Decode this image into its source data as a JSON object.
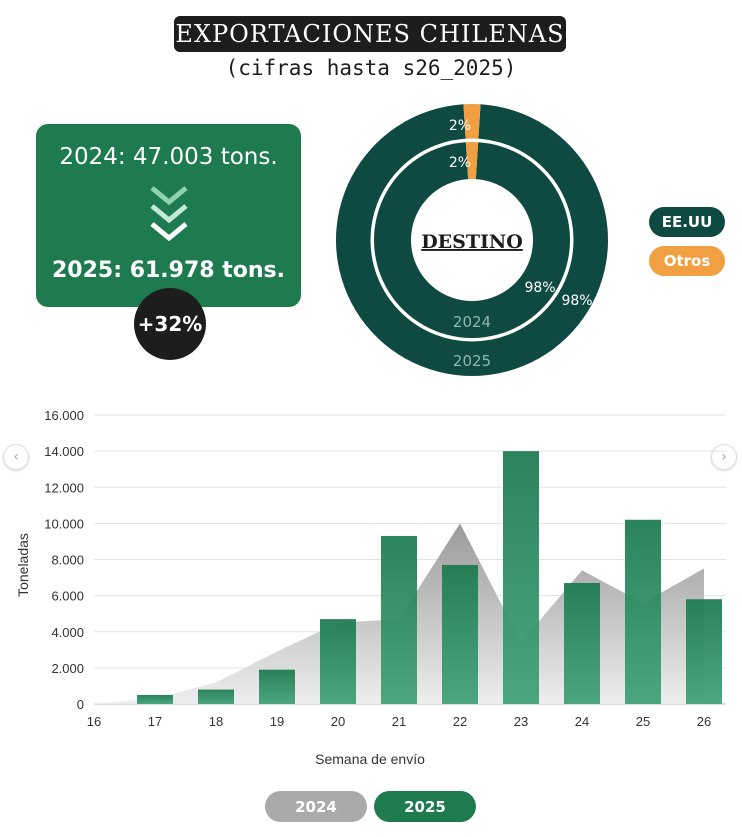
{
  "header": {
    "title": "EXPORTACIONES CHILENAS",
    "subtitle": "(cifras hasta s26_2025)"
  },
  "summary": {
    "line_2024": "2024: 47.003 tons.",
    "line_2025": "2025: 61.978 tons.",
    "change": "+32%"
  },
  "donut": {
    "center_label": "DESTINO",
    "outer": {
      "year": "2025",
      "eeuu_label": "98%",
      "otros_label": "2%",
      "eeuu": 98,
      "otros": 2
    },
    "inner": {
      "year": "2024",
      "eeuu_label": "98%",
      "otros_label": "2%",
      "eeuu": 98,
      "otros": 2
    },
    "colors": {
      "eeuu": "#0f4a42",
      "otros": "#f0a040"
    }
  },
  "legend": {
    "eeuu": "EE.UU",
    "otros": "Otros"
  },
  "nav": {
    "prev": "‹",
    "next": "›"
  },
  "chart_data": {
    "type": "bar",
    "xlabel": "Semana de envío",
    "ylabel": "Toneladas",
    "ylim": [
      0,
      16000
    ],
    "yticks": [
      0,
      2000,
      4000,
      6000,
      8000,
      10000,
      12000,
      14000,
      16000
    ],
    "ytick_labels": [
      "0",
      "2.000",
      "4.000",
      "6.000",
      "8.000",
      "10.000",
      "12.000",
      "14.000",
      "16.000"
    ],
    "categories": [
      "16",
      "17",
      "18",
      "19",
      "20",
      "21",
      "22",
      "23",
      "24",
      "25",
      "26"
    ],
    "series": [
      {
        "name": "2024",
        "type": "area",
        "color": "#b5b5b5",
        "values": [
          0,
          300,
          1200,
          2900,
          4500,
          4700,
          10000,
          3400,
          7400,
          5600,
          7500
        ]
      },
      {
        "name": "2025",
        "type": "bar",
        "color": "#1e7a4f",
        "values": [
          0,
          500,
          800,
          1900,
          4700,
          9300,
          7700,
          14000,
          6700,
          10200,
          5800
        ]
      }
    ],
    "grid": true
  },
  "toggles": {
    "y2024": "2024",
    "y2025": "2025"
  }
}
